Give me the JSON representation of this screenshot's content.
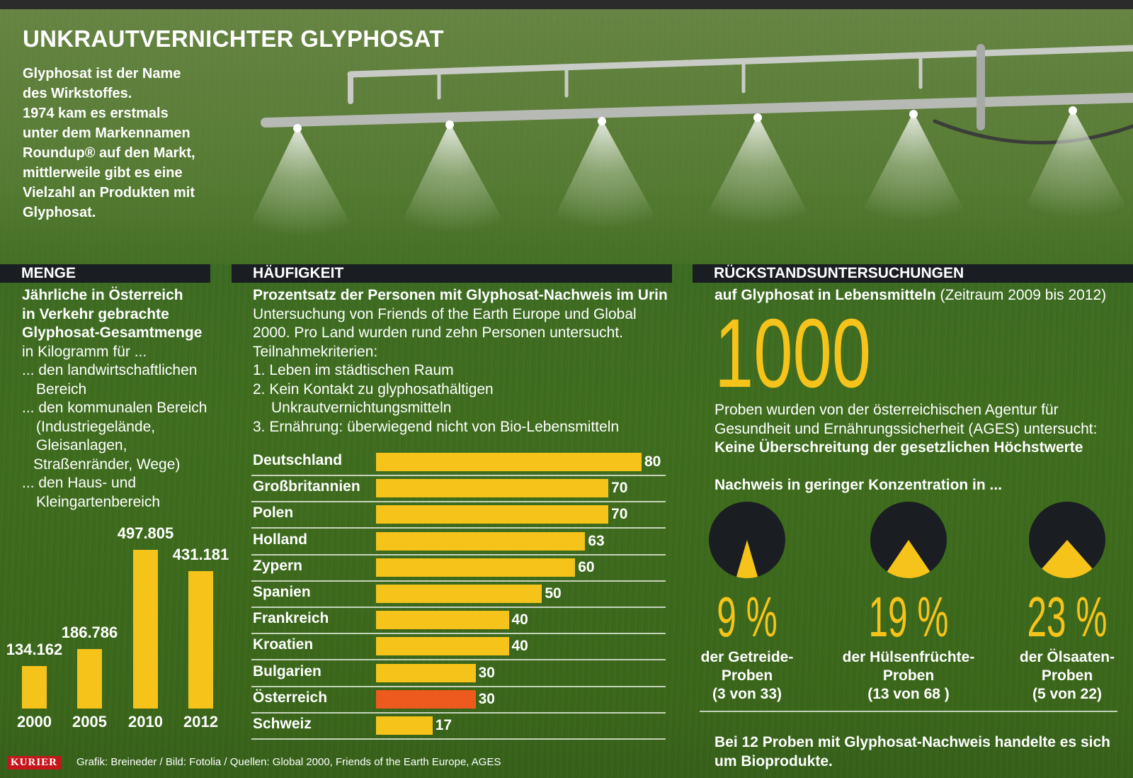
{
  "header": {
    "title": "UNKRAUTVERNICHTER GLYPHOSAT",
    "intro_lines": [
      "Glyphosat ist der Name",
      "des Wirkstoffes.",
      "1974 kam es erstmals",
      "unter dem Markennamen",
      "Roundup® auf den Markt,",
      "mittlerweile gibt es eine",
      "Vielzahl an Produkten mit",
      "Glyphosat."
    ]
  },
  "menge": {
    "heading": "MENGE",
    "bold_lines": [
      "Jährliche in Österreich",
      "in Verkehr gebrachte",
      "Glyphosat-Gesamtmenge"
    ],
    "lines": [
      "in Kilogramm für ...",
      "... den landwirtschaftlichen",
      "Bereich",
      "... den kommunalen Bereich",
      "(Industriegelände,",
      "Gleisanlagen,",
      "Straßenränder, Wege)",
      "... den Haus- und",
      "Kleingartenbereich"
    ]
  },
  "haeufigkeit": {
    "heading": "HÄUFIGKEIT",
    "subtitle": "Prozentsatz der Personen mit Glyphosat-Nachweis im Urin",
    "lines": [
      "Untersuchung von Friends of the Earth Europe und Global",
      "2000. Pro Land wurden rund zehn Personen untersucht.",
      "Teilnahmekriterien:",
      "1. Leben im städtischen Raum",
      "2. Kein Kontakt zu glyphosathältigen",
      "Unkrautvernichtungsmitteln",
      "3. Ernährung: überwiegend nicht von Bio-Lebensmitteln"
    ]
  },
  "rueckstand": {
    "heading": "RÜCKSTANDSUNTERSUCHUNGEN",
    "subtitle_bold": "auf Glyphosat in Lebensmitteln",
    "subtitle_normal": "(Zeitraum 2009 bis 2012)",
    "big_number": "1000",
    "lines": [
      "Proben wurden von der österreichischen Agentur für",
      "Gesundheit und Ernährungssicherheit (AGES) untersucht:"
    ],
    "conclusion": "Keine Überschreitung der gesetzlichen Höchstwerte",
    "nachweis_heading": "Nachweis in geringer Konzentration in ...",
    "bottom_lines": [
      "Bei 12 Proben mit Glyphosat-Nachweis handelte es sich",
      "um Bioprodukte."
    ]
  },
  "footer": {
    "brand": "KURIER",
    "credits": "Grafik: Breineder / Bild: Fotolia / Quellen: Global 2000, Friends of the Earth Europe, AGES"
  },
  "colors": {
    "bar_yellow": "#f6c31a",
    "bar_highlight": "#ee5a1e",
    "pie_dark": "#1a1d22",
    "header_dark": "#1a1d22"
  },
  "chart_data": [
    {
      "type": "bar",
      "title": "MENGE",
      "categories": [
        "2000",
        "2005",
        "2010",
        "2012"
      ],
      "values": [
        134162,
        186786,
        497805,
        431181
      ],
      "labels": [
        "134.162",
        "186.786",
        "497.805",
        "431.181"
      ],
      "ylim": [
        0,
        500000
      ]
    },
    {
      "type": "bar",
      "orientation": "horizontal",
      "title": "HÄUFIGKEIT",
      "categories": [
        "Deutschland",
        "Großbritannien",
        "Polen",
        "Holland",
        "Zypern",
        "Spanien",
        "Frankreich",
        "Kroatien",
        "Bulgarien",
        "Österreich",
        "Schweiz"
      ],
      "values": [
        80,
        70,
        70,
        63,
        60,
        50,
        40,
        40,
        30,
        30,
        17
      ],
      "highlight": "Österreich",
      "xlim": [
        0,
        80
      ]
    },
    {
      "type": "pie",
      "title": "Nachweis in geringer Konzentration in ...",
      "items": [
        {
          "label_pct": "9 %",
          "value": 9,
          "caption": [
            "der Getreide-",
            "Proben",
            "(3 von 33)"
          ]
        },
        {
          "label_pct": "19 %",
          "value": 19,
          "caption": [
            "der Hülsenfrüchte-",
            "Proben",
            "(13 von 68 )"
          ]
        },
        {
          "label_pct": "23 %",
          "value": 23,
          "caption": [
            "der Ölsaaten-",
            "Proben",
            "(5 von 22)"
          ]
        }
      ]
    }
  ]
}
